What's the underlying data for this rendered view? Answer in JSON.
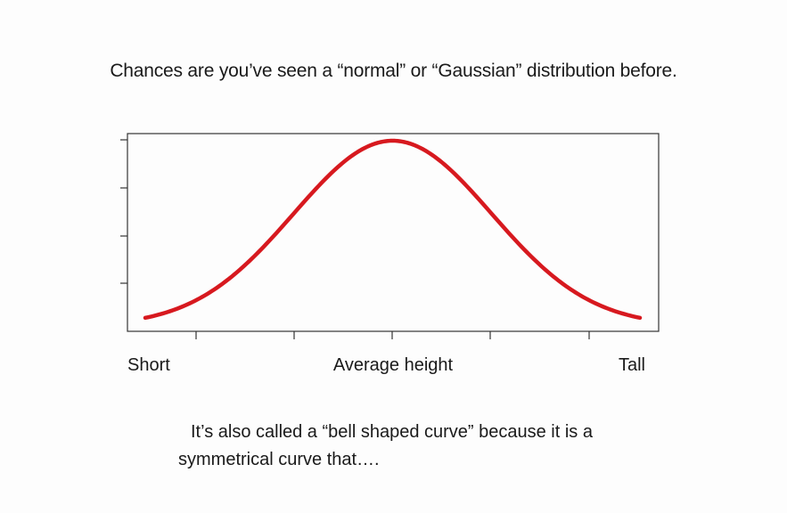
{
  "slide": {
    "heading": "Chances are you’ve seen a “normal” or “Gaussian” distribution before.",
    "caption_line1": "It’s also called a “bell shaped curve” because it is a",
    "caption_line2": "symmetrical curve that…."
  },
  "chart_data": {
    "type": "line",
    "curve": "normal-distribution",
    "mean": 0,
    "sd": 1,
    "xlim": [
      -2.5,
      2.5
    ],
    "ylim": [
      0,
      1
    ],
    "x_tick_labels": [
      "Short",
      "Average height",
      "Tall"
    ],
    "x_tick_count": 5,
    "y_tick_count": 4,
    "series": [
      {
        "color": "#d7191f"
      }
    ],
    "grid": false,
    "legend": "none"
  }
}
